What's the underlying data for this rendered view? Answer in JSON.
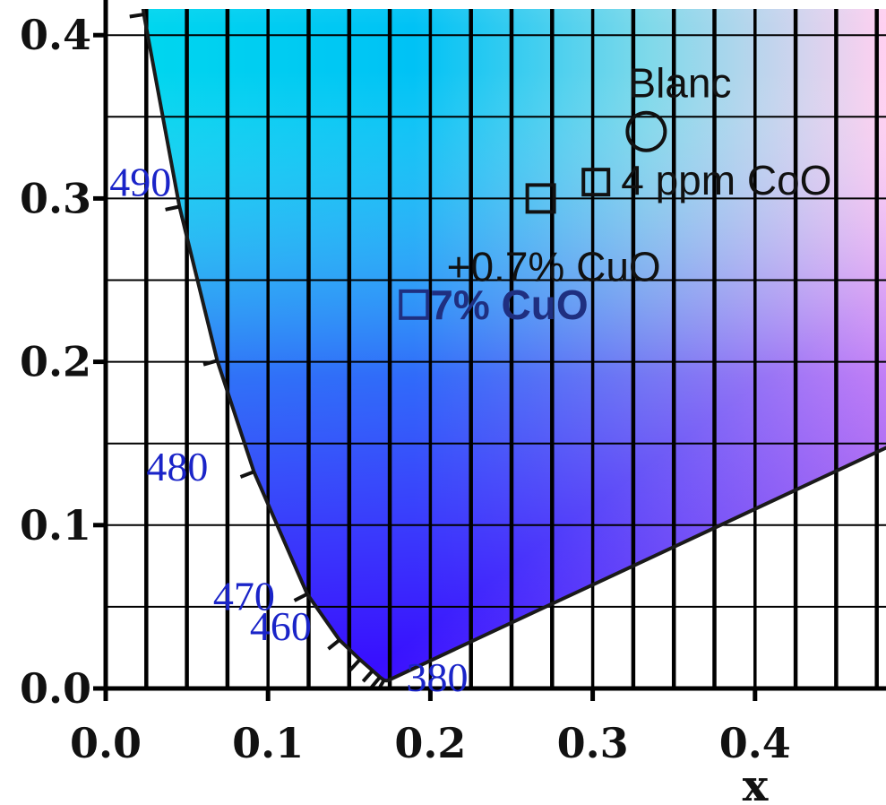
{
  "chart_data": {
    "type": "scatter",
    "title": "",
    "xlabel": "x",
    "ylabel": "",
    "xlim": [
      0.0,
      0.48
    ],
    "ylim": [
      0.0,
      0.42
    ],
    "x_ticks": [
      "0.0",
      "0.1",
      "0.2",
      "0.3",
      "0.4"
    ],
    "y_ticks": [
      "0.0",
      "0.1",
      "0.2",
      "0.3",
      "0.4"
    ],
    "grid": true,
    "spectral_locus_labels": [
      {
        "nm": "490",
        "x": 0.0454,
        "y": 0.295
      },
      {
        "nm": "480",
        "x": 0.0913,
        "y": 0.1327
      },
      {
        "nm": "470",
        "x": 0.1241,
        "y": 0.0578
      },
      {
        "nm": "460",
        "x": 0.144,
        "y": 0.0297
      },
      {
        "nm": "380",
        "x": 0.1741,
        "y": 0.005
      }
    ],
    "series": [
      {
        "name": "Blanc",
        "marker": "circle",
        "x": 0.333,
        "y": 0.341
      },
      {
        "name": "4 ppm CoO",
        "marker": "square",
        "x": 0.302,
        "y": 0.31
      },
      {
        "name": "+0.7% CuO",
        "marker": "square",
        "x": 0.268,
        "y": 0.3
      },
      {
        "name": "7% CuO",
        "marker": "square",
        "x": 0.19,
        "y": 0.235
      }
    ],
    "colors": {
      "locus": "#111111",
      "wavelength_labels": "#1a24c8",
      "highlight": "#1f2f80"
    }
  }
}
